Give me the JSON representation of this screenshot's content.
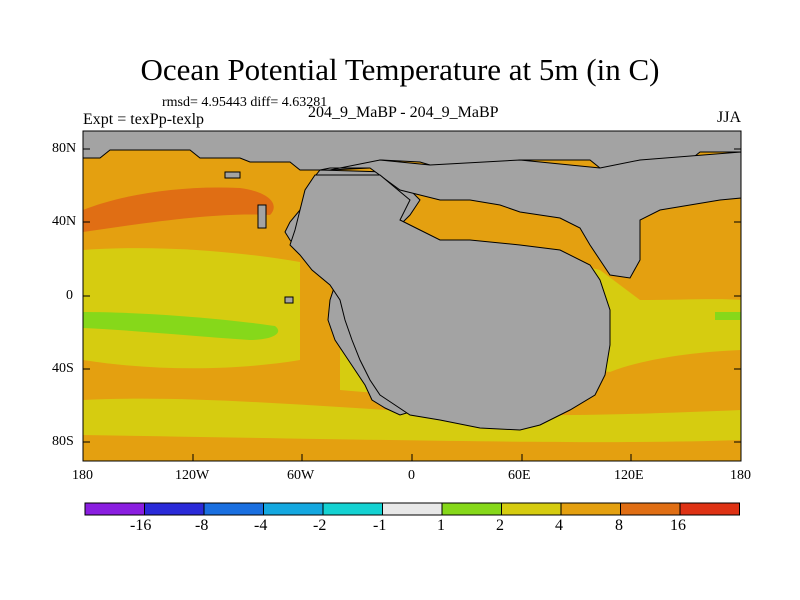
{
  "header": {
    "title": "Ocean Potential Temperature at 5m (in C)",
    "stats": "rmsd= 4.95443 diff= 4.63281",
    "experiment": "Expt = texPp-texlp",
    "runs": "204_9_MaBP - 204_9_MaBP",
    "season": "JJA"
  },
  "axes": {
    "y_ticks": [
      "80N",
      "40N",
      "0",
      "40S",
      "80S"
    ],
    "x_ticks": [
      "180",
      "120W",
      "60W",
      "0",
      "60E",
      "120E",
      "180"
    ]
  },
  "colorbar": {
    "labels": [
      "-16",
      "-8",
      "-4",
      "-2",
      "-1",
      "1",
      "2",
      "4",
      "8",
      "16"
    ],
    "colors": [
      "#8a1ee0",
      "#2a2ad8",
      "#1a6fe0",
      "#14a8e0",
      "#14d2d2",
      "#e8e8e8",
      "#86d81a",
      "#d6cc10",
      "#e4a010",
      "#e06e14",
      "#de3214"
    ]
  },
  "map_colors": {
    "land": "#a3a3a3",
    "level_2_4": "#d6cc10",
    "level_4_8": "#e4a010",
    "level_8_16": "#e06e14",
    "level_1_2": "#86d81a"
  }
}
